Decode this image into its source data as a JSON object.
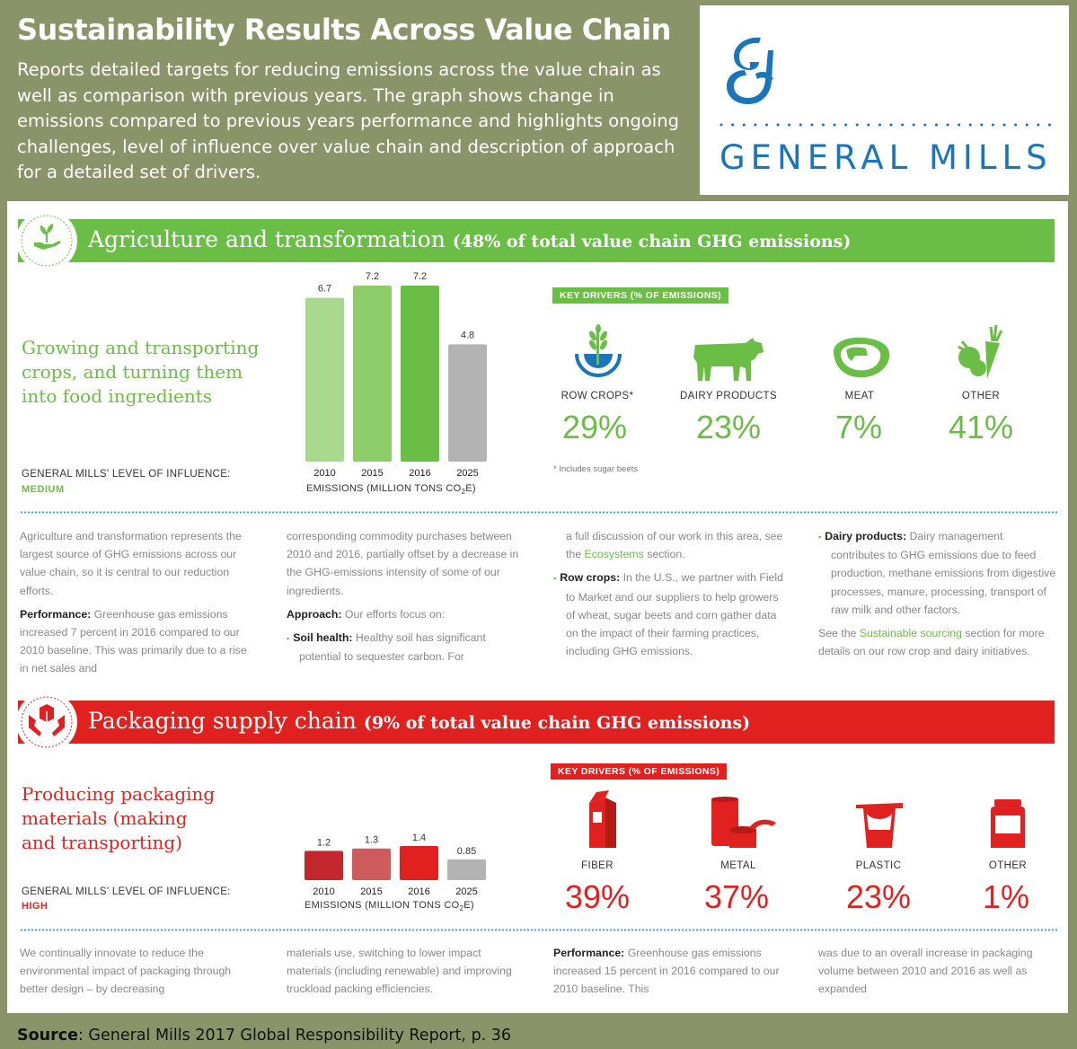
{
  "header": {
    "title": "Sustainability Results Across Value Chain",
    "description": "Reports detailed targets for reducing emissions across the value chain as well as comparison with previous years. The graph shows change in emissions compared to previous years performance and highlights ongoing challenges, level of influence over value chain and description of approach for a detailed set of drivers."
  },
  "logo": {
    "text": "GENERAL MILLS",
    "icon": "general-mills-g-logo"
  },
  "colors": {
    "green": "#6abd45",
    "red": "#e1211f",
    "olive": "#8a9469",
    "blue": "#1b75bc"
  },
  "agriculture": {
    "band_title": "Agriculture and transformation",
    "band_subtitle": "(48% of total value chain GHG emissions)",
    "heading": [
      "Growing and transporting",
      "crops, and turning them",
      "into food ingredients"
    ],
    "influence_label": "GENERAL MILLS' LEVEL OF INFLUENCE:",
    "influence_value": "MEDIUM",
    "emissions_label": "EMISSIONS (MILLION TONS CO",
    "emissions_sub": "2",
    "emissions_end": "E)",
    "key_drivers_label": "KEY DRIVERS (% OF EMISSIONS)",
    "drivers": [
      {
        "name": "ROW CROPS*",
        "pct": "29%",
        "icon": "wheat-icon"
      },
      {
        "name": "DAIRY PRODUCTS",
        "pct": "23%",
        "icon": "cow-icon"
      },
      {
        "name": "MEAT",
        "pct": "7%",
        "icon": "steak-icon"
      },
      {
        "name": "OTHER",
        "pct": "41%",
        "icon": "vegetables-icon"
      }
    ],
    "footnote": "* Includes sugar beets",
    "columns": [
      [
        {
          "text": "Agriculture and transformation represents the largest source of GHG emissions across our value chain, so it is central to our reduction efforts."
        },
        {
          "bold": "Performance:",
          "text": " Greenhouse gas emissions increased 7 percent in 2016 compared to our 2010 baseline. This was primarily due to a rise in net sales and"
        }
      ],
      [
        {
          "text": "corresponding commodity purchases between 2010 and 2016, partially offset by a decrease in the GHG-emissions intensity of some of our ingredients."
        },
        {
          "bold": "Approach:",
          "text": " Our efforts focus on:"
        },
        {
          "bullet": "▪",
          "bold": "Soil health:",
          "text": " Healthy soil has significant potential to sequester carbon. For"
        }
      ],
      [
        {
          "text": "a full discussion of our work in this area, see the ",
          "link": "Ecosystems",
          "after": " section."
        },
        {
          "bullet": "▪",
          "bold": "Row crops:",
          "text": " In the U.S., we partner with Field to Market and our suppliers to help growers of wheat, sugar beets and corn gather data on the impact of their farming practices, including GHG emissions."
        }
      ],
      [
        {
          "bullet": "▪",
          "bold": "Dairy products:",
          "text": " Dairy management contributes to GHG emissions due to feed production, methane emissions from digestive processes, manure, processing, transport of raw milk and other factors."
        },
        {
          "text": "See the ",
          "link": "Sustainable sourcing",
          "after": " section for more details on our row crop and dairy initiatives."
        }
      ]
    ]
  },
  "packaging": {
    "band_title": "Packaging supply chain",
    "band_subtitle": "(9% of total value chain GHG emissions)",
    "heading": [
      "Producing packaging",
      "materials (making",
      "and transporting)"
    ],
    "influence_label": "GENERAL MILLS' LEVEL OF INFLUENCE:",
    "influence_value": "HIGH",
    "emissions_label": "EMISSIONS (MILLION TONS CO",
    "emissions_sub": "2",
    "emissions_end": "E)",
    "key_drivers_label": "KEY DRIVERS (% OF EMISSIONS)",
    "drivers": [
      {
        "name": "FIBER",
        "pct": "39%",
        "icon": "carton-icon"
      },
      {
        "name": "METAL",
        "pct": "37%",
        "icon": "can-icon"
      },
      {
        "name": "PLASTIC",
        "pct": "23%",
        "icon": "yogurt-cup-icon"
      },
      {
        "name": "OTHER",
        "pct": "1%",
        "icon": "jar-icon"
      }
    ],
    "columns": [
      [
        {
          "text": "We continually innovate to reduce the environmental impact of packaging through better design – by decreasing"
        }
      ],
      [
        {
          "text": "materials use, switching to lower impact materials (including renewable) and improving truckload packing efficiencies."
        }
      ],
      [
        {
          "bold": "Performance:",
          "text": " Greenhouse gas emissions increased 15 percent in 2016 compared to our 2010 baseline. This"
        }
      ],
      [
        {
          "text": "was due to an overall increase in packaging volume between 2010 and 2016 as well as expanded"
        }
      ]
    ]
  },
  "chart_data": [
    {
      "type": "bar",
      "title": "Agriculture and transformation",
      "categories": [
        "2010",
        "2015",
        "2016",
        "2025"
      ],
      "values": [
        6.7,
        7.2,
        7.2,
        4.8
      ],
      "value_labels": [
        "6.7",
        "7.2",
        "7.2",
        "4.8"
      ],
      "xlabel": "EMISSIONS (MILLION TONS CO2E)",
      "ylim": [
        0,
        7.2
      ],
      "bar_colors": [
        "#a8d98e",
        "#8ccd6a",
        "#6abd45",
        "#b3b3b3"
      ]
    },
    {
      "type": "bar",
      "title": "Packaging supply chain",
      "categories": [
        "2010",
        "2015",
        "2016",
        "2025"
      ],
      "values": [
        1.2,
        1.3,
        1.4,
        0.85
      ],
      "value_labels": [
        "1.2",
        "1.3",
        "1.4",
        "0.85"
      ],
      "xlabel": "EMISSIONS (MILLION TONS CO2E)",
      "ylim": [
        0,
        1.4
      ],
      "bar_colors": [
        "#c1272d",
        "#cf5c5c",
        "#e1211f",
        "#b3b3b3"
      ]
    }
  ],
  "source": {
    "label": "Source",
    "text": ": General Mills 2017 Global Responsibility Report, p. 36"
  }
}
